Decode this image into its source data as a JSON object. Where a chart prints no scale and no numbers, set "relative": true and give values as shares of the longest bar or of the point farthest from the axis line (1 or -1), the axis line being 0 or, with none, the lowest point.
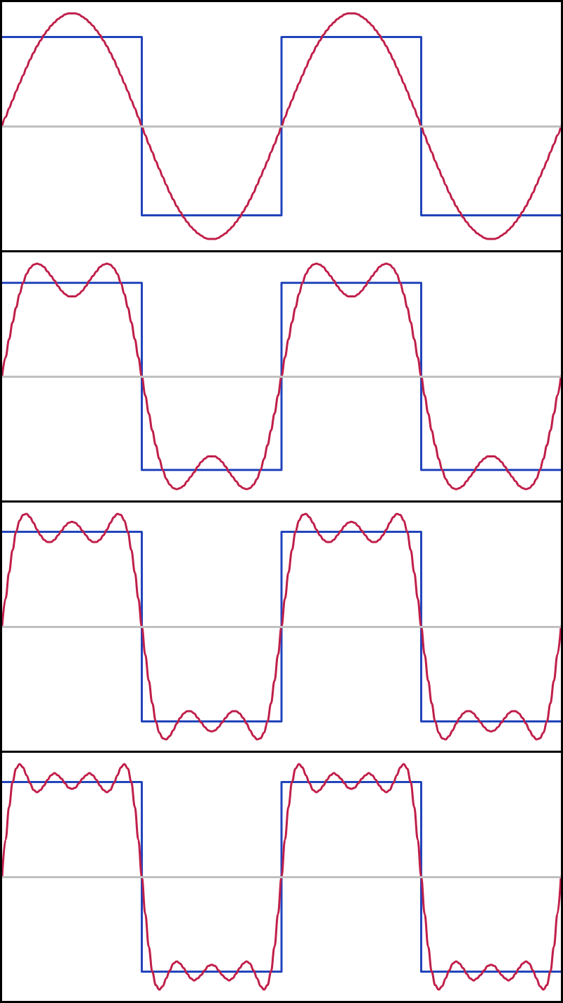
{
  "chart_data": [
    {
      "type": "line",
      "relative": true,
      "marker": "none",
      "tick_labels": false,
      "categories": [
        null,
        null,
        null,
        null,
        null,
        null,
        null,
        null,
        null,
        null,
        null,
        null,
        null,
        null,
        null,
        null,
        null,
        null,
        null,
        null,
        null,
        null,
        null,
        null,
        null,
        null,
        null,
        null,
        null,
        null,
        null,
        null,
        null,
        null,
        null,
        null,
        null,
        null,
        null,
        null,
        null,
        null,
        null,
        null,
        null,
        null,
        null,
        null,
        null,
        null,
        null,
        null,
        null,
        null,
        null,
        null,
        null,
        null,
        null,
        null,
        null,
        null,
        null,
        null,
        null,
        null,
        null,
        null,
        null,
        null,
        null,
        null,
        null,
        null,
        null,
        null,
        null,
        null,
        null,
        null,
        null,
        null,
        null,
        null,
        null,
        null,
        null,
        null,
        null,
        null,
        null,
        null,
        null,
        null,
        null,
        null,
        null,
        null,
        null,
        null,
        null,
        null,
        null,
        null,
        null,
        null,
        null,
        null,
        null,
        null,
        null,
        null,
        null,
        null,
        null,
        null,
        null,
        null,
        null,
        null,
        null,
        null,
        null,
        null,
        null,
        null,
        null,
        null,
        null,
        null,
        null,
        null,
        null,
        null,
        null,
        null,
        null,
        null,
        null,
        null,
        null,
        null,
        null,
        null,
        null,
        null,
        null,
        null,
        null,
        null,
        null,
        null,
        null,
        null,
        null,
        null,
        null,
        null,
        null,
        null,
        null
      ],
      "ref_lines": [
        {
          "axis": "y",
          "value": 0,
          "color": "#c0c0c0"
        }
      ],
      "series": [
        {
          "type": "step",
          "color": "#2244bb",
          "values": [
            0.79,
            0.79,
            0.79,
            0.79,
            0.79,
            0.79,
            0.79,
            0.79,
            0.79,
            0.79,
            0.79,
            0.79,
            0.79,
            0.79,
            0.79,
            0.79,
            0.79,
            0.79,
            0.79,
            0.79,
            0.79,
            0.79,
            0.79,
            0.79,
            0.79,
            0.79,
            0.79,
            0.79,
            0.79,
            0.79,
            0.79,
            0.79,
            0.79,
            0.79,
            0.79,
            0.79,
            0.79,
            0.79,
            0.79,
            0.79,
            -0.79,
            -0.79,
            -0.79,
            -0.79,
            -0.79,
            -0.79,
            -0.79,
            -0.79,
            -0.79,
            -0.79,
            -0.79,
            -0.79,
            -0.79,
            -0.79,
            -0.79,
            -0.79,
            -0.79,
            -0.79,
            -0.79,
            -0.79,
            -0.79,
            -0.79,
            -0.79,
            -0.79,
            -0.79,
            -0.79,
            -0.79,
            -0.79,
            -0.79,
            -0.79,
            -0.79,
            -0.79,
            -0.79,
            -0.79,
            -0.79,
            -0.79,
            -0.79,
            -0.79,
            -0.79,
            -0.79,
            0.79,
            0.79,
            0.79,
            0.79,
            0.79,
            0.79,
            0.79,
            0.79,
            0.79,
            0.79,
            0.79,
            0.79,
            0.79,
            0.79,
            0.79,
            0.79,
            0.79,
            0.79,
            0.79,
            0.79,
            0.79,
            0.79,
            0.79,
            0.79,
            0.79,
            0.79,
            0.79,
            0.79,
            0.79,
            0.79,
            0.79,
            0.79,
            0.79,
            0.79,
            0.79,
            0.79,
            0.79,
            0.79,
            0.79,
            0.79,
            -0.79,
            -0.79,
            -0.79,
            -0.79,
            -0.79,
            -0.79,
            -0.79,
            -0.79,
            -0.79,
            -0.79,
            -0.79,
            -0.79,
            -0.79,
            -0.79,
            -0.79,
            -0.79,
            -0.79,
            -0.79,
            -0.79,
            -0.79,
            -0.79,
            -0.79,
            -0.79,
            -0.79,
            -0.79,
            -0.79,
            -0.79,
            -0.79,
            -0.79,
            -0.79,
            -0.79,
            -0.79,
            -0.79,
            -0.79,
            -0.79,
            -0.79,
            -0.79,
            -0.79,
            -0.79,
            -0.79,
            -0.79
          ]
        },
        {
          "color": "#c01f4a",
          "values": [
            0,
            0.08,
            0.16,
            0.23,
            0.31,
            0.38,
            0.45,
            0.52,
            0.59,
            0.65,
            0.71,
            0.76,
            0.81,
            0.85,
            0.89,
            0.92,
            0.95,
            0.97,
            0.99,
            1,
            1,
            1,
            0.99,
            0.97,
            0.95,
            0.92,
            0.89,
            0.85,
            0.81,
            0.76,
            0.71,
            0.65,
            0.59,
            0.52,
            0.45,
            0.38,
            0.31,
            0.23,
            0.16,
            0.08,
            0,
            -0.08,
            -0.16,
            -0.23,
            -0.31,
            -0.38,
            -0.45,
            -0.52,
            -0.59,
            -0.65,
            -0.71,
            -0.76,
            -0.81,
            -0.85,
            -0.89,
            -0.92,
            -0.95,
            -0.97,
            -0.99,
            -1,
            -1,
            -1,
            -0.99,
            -0.97,
            -0.95,
            -0.92,
            -0.89,
            -0.85,
            -0.81,
            -0.76,
            -0.71,
            -0.65,
            -0.59,
            -0.52,
            -0.45,
            -0.38,
            -0.31,
            -0.23,
            -0.16,
            -0.08,
            0,
            0.08,
            0.16,
            0.23,
            0.31,
            0.38,
            0.45,
            0.52,
            0.59,
            0.65,
            0.71,
            0.76,
            0.81,
            0.85,
            0.89,
            0.92,
            0.95,
            0.97,
            0.99,
            1,
            1,
            1,
            0.99,
            0.97,
            0.95,
            0.92,
            0.89,
            0.85,
            0.81,
            0.76,
            0.71,
            0.65,
            0.59,
            0.52,
            0.45,
            0.38,
            0.31,
            0.23,
            0.16,
            0.08,
            0,
            -0.08,
            -0.16,
            -0.23,
            -0.31,
            -0.38,
            -0.45,
            -0.52,
            -0.59,
            -0.65,
            -0.71,
            -0.76,
            -0.81,
            -0.85,
            -0.89,
            -0.92,
            -0.95,
            -0.97,
            -0.99,
            -1,
            -1,
            -1,
            -0.99,
            -0.97,
            -0.95,
            -0.92,
            -0.89,
            -0.85,
            -0.81,
            -0.76,
            -0.71,
            -0.65,
            -0.59,
            -0.52,
            -0.45,
            -0.38,
            -0.31,
            -0.23,
            -0.16,
            -0.08,
            0
          ]
        }
      ]
    },
    {
      "type": "line",
      "relative": true,
      "marker": "none",
      "tick_labels": false,
      "categories": [
        null,
        null,
        null,
        null,
        null,
        null,
        null,
        null,
        null,
        null,
        null,
        null,
        null,
        null,
        null,
        null,
        null,
        null,
        null,
        null,
        null,
        null,
        null,
        null,
        null,
        null,
        null,
        null,
        null,
        null,
        null,
        null,
        null,
        null,
        null,
        null,
        null,
        null,
        null,
        null,
        null,
        null,
        null,
        null,
        null,
        null,
        null,
        null,
        null,
        null,
        null,
        null,
        null,
        null,
        null,
        null,
        null,
        null,
        null,
        null,
        null,
        null,
        null,
        null,
        null,
        null,
        null,
        null,
        null,
        null,
        null,
        null,
        null,
        null,
        null,
        null,
        null,
        null,
        null,
        null,
        null,
        null,
        null,
        null,
        null,
        null,
        null,
        null,
        null,
        null,
        null,
        null,
        null,
        null,
        null,
        null,
        null,
        null,
        null,
        null,
        null,
        null,
        null,
        null,
        null,
        null,
        null,
        null,
        null,
        null,
        null,
        null,
        null,
        null,
        null,
        null,
        null,
        null,
        null,
        null,
        null,
        null,
        null,
        null,
        null,
        null,
        null,
        null,
        null,
        null,
        null,
        null,
        null,
        null,
        null,
        null,
        null,
        null,
        null,
        null,
        null,
        null,
        null,
        null,
        null,
        null,
        null,
        null,
        null,
        null,
        null,
        null,
        null,
        null,
        null,
        null,
        null,
        null,
        null,
        null,
        null
      ],
      "ref_lines": [
        {
          "axis": "y",
          "value": 0,
          "color": "#c0c0c0"
        }
      ],
      "series": [
        {
          "type": "step",
          "color": "#2244bb",
          "values": [
            0.83,
            0.83,
            0.83,
            0.83,
            0.83,
            0.83,
            0.83,
            0.83,
            0.83,
            0.83,
            0.83,
            0.83,
            0.83,
            0.83,
            0.83,
            0.83,
            0.83,
            0.83,
            0.83,
            0.83,
            0.83,
            0.83,
            0.83,
            0.83,
            0.83,
            0.83,
            0.83,
            0.83,
            0.83,
            0.83,
            0.83,
            0.83,
            0.83,
            0.83,
            0.83,
            0.83,
            0.83,
            0.83,
            0.83,
            0.83,
            -0.83,
            -0.83,
            -0.83,
            -0.83,
            -0.83,
            -0.83,
            -0.83,
            -0.83,
            -0.83,
            -0.83,
            -0.83,
            -0.83,
            -0.83,
            -0.83,
            -0.83,
            -0.83,
            -0.83,
            -0.83,
            -0.83,
            -0.83,
            -0.83,
            -0.83,
            -0.83,
            -0.83,
            -0.83,
            -0.83,
            -0.83,
            -0.83,
            -0.83,
            -0.83,
            -0.83,
            -0.83,
            -0.83,
            -0.83,
            -0.83,
            -0.83,
            -0.83,
            -0.83,
            -0.83,
            -0.83,
            0.83,
            0.83,
            0.83,
            0.83,
            0.83,
            0.83,
            0.83,
            0.83,
            0.83,
            0.83,
            0.83,
            0.83,
            0.83,
            0.83,
            0.83,
            0.83,
            0.83,
            0.83,
            0.83,
            0.83,
            0.83,
            0.83,
            0.83,
            0.83,
            0.83,
            0.83,
            0.83,
            0.83,
            0.83,
            0.83,
            0.83,
            0.83,
            0.83,
            0.83,
            0.83,
            0.83,
            0.83,
            0.83,
            0.83,
            0.83,
            -0.83,
            -0.83,
            -0.83,
            -0.83,
            -0.83,
            -0.83,
            -0.83,
            -0.83,
            -0.83,
            -0.83,
            -0.83,
            -0.83,
            -0.83,
            -0.83,
            -0.83,
            -0.83,
            -0.83,
            -0.83,
            -0.83,
            -0.83,
            -0.83,
            -0.83,
            -0.83,
            -0.83,
            -0.83,
            -0.83,
            -0.83,
            -0.83,
            -0.83,
            -0.83,
            -0.83,
            -0.83,
            -0.83,
            -0.83,
            -0.83,
            -0.83,
            -0.83,
            -0.83,
            -0.83,
            -0.83,
            -0.83
          ]
        },
        {
          "color": "#c01f4a",
          "values": [
            0,
            0.17,
            0.33,
            0.48,
            0.61,
            0.73,
            0.83,
            0.91,
            0.96,
            0.99,
            1,
            0.99,
            0.97,
            0.93,
            0.89,
            0.85,
            0.8,
            0.76,
            0.73,
            0.71,
            0.71,
            0.71,
            0.73,
            0.76,
            0.8,
            0.85,
            0.89,
            0.93,
            0.97,
            0.99,
            1,
            0.99,
            0.96,
            0.91,
            0.83,
            0.73,
            0.61,
            0.48,
            0.33,
            0.17,
            0,
            -0.17,
            -0.33,
            -0.48,
            -0.61,
            -0.73,
            -0.83,
            -0.91,
            -0.96,
            -0.99,
            -1,
            -0.99,
            -0.97,
            -0.93,
            -0.89,
            -0.85,
            -0.8,
            -0.76,
            -0.73,
            -0.71,
            -0.71,
            -0.71,
            -0.73,
            -0.76,
            -0.8,
            -0.85,
            -0.89,
            -0.93,
            -0.97,
            -0.99,
            -1,
            -0.99,
            -0.96,
            -0.91,
            -0.83,
            -0.73,
            -0.61,
            -0.48,
            -0.33,
            -0.17,
            0,
            0.17,
            0.33,
            0.48,
            0.61,
            0.73,
            0.83,
            0.91,
            0.96,
            0.99,
            1,
            0.99,
            0.97,
            0.93,
            0.89,
            0.85,
            0.8,
            0.76,
            0.73,
            0.71,
            0.71,
            0.71,
            0.73,
            0.76,
            0.8,
            0.85,
            0.89,
            0.93,
            0.97,
            0.99,
            1,
            0.99,
            0.96,
            0.91,
            0.83,
            0.73,
            0.61,
            0.48,
            0.33,
            0.17,
            0,
            -0.17,
            -0.33,
            -0.48,
            -0.61,
            -0.73,
            -0.83,
            -0.91,
            -0.96,
            -0.99,
            -1,
            -0.99,
            -0.97,
            -0.93,
            -0.89,
            -0.85,
            -0.8,
            -0.76,
            -0.73,
            -0.71,
            -0.71,
            -0.71,
            -0.73,
            -0.76,
            -0.8,
            -0.85,
            -0.89,
            -0.93,
            -0.97,
            -0.99,
            -1,
            -0.99,
            -0.96,
            -0.91,
            -0.83,
            -0.73,
            -0.61,
            -0.48,
            -0.33,
            -0.17,
            0
          ]
        }
      ]
    },
    {
      "type": "line",
      "relative": true,
      "marker": "none",
      "tick_labels": false,
      "categories": [
        null,
        null,
        null,
        null,
        null,
        null,
        null,
        null,
        null,
        null,
        null,
        null,
        null,
        null,
        null,
        null,
        null,
        null,
        null,
        null,
        null,
        null,
        null,
        null,
        null,
        null,
        null,
        null,
        null,
        null,
        null,
        null,
        null,
        null,
        null,
        null,
        null,
        null,
        null,
        null,
        null,
        null,
        null,
        null,
        null,
        null,
        null,
        null,
        null,
        null,
        null,
        null,
        null,
        null,
        null,
        null,
        null,
        null,
        null,
        null,
        null,
        null,
        null,
        null,
        null,
        null,
        null,
        null,
        null,
        null,
        null,
        null,
        null,
        null,
        null,
        null,
        null,
        null,
        null,
        null,
        null,
        null,
        null,
        null,
        null,
        null,
        null,
        null,
        null,
        null,
        null,
        null,
        null,
        null,
        null,
        null,
        null,
        null,
        null,
        null,
        null,
        null,
        null,
        null,
        null,
        null,
        null,
        null,
        null,
        null,
        null,
        null,
        null,
        null,
        null,
        null,
        null,
        null,
        null,
        null,
        null,
        null,
        null,
        null,
        null,
        null,
        null,
        null,
        null,
        null,
        null,
        null,
        null,
        null,
        null,
        null,
        null,
        null,
        null,
        null,
        null,
        null,
        null,
        null,
        null,
        null,
        null,
        null,
        null,
        null,
        null,
        null,
        null,
        null,
        null,
        null,
        null,
        null,
        null,
        null,
        null
      ],
      "ref_lines": [
        {
          "axis": "y",
          "value": 0,
          "color": "#c0c0c0"
        }
      ],
      "series": [
        {
          "type": "step",
          "color": "#2244bb",
          "values": [
            0.84,
            0.84,
            0.84,
            0.84,
            0.84,
            0.84,
            0.84,
            0.84,
            0.84,
            0.84,
            0.84,
            0.84,
            0.84,
            0.84,
            0.84,
            0.84,
            0.84,
            0.84,
            0.84,
            0.84,
            0.84,
            0.84,
            0.84,
            0.84,
            0.84,
            0.84,
            0.84,
            0.84,
            0.84,
            0.84,
            0.84,
            0.84,
            0.84,
            0.84,
            0.84,
            0.84,
            0.84,
            0.84,
            0.84,
            0.84,
            -0.84,
            -0.84,
            -0.84,
            -0.84,
            -0.84,
            -0.84,
            -0.84,
            -0.84,
            -0.84,
            -0.84,
            -0.84,
            -0.84,
            -0.84,
            -0.84,
            -0.84,
            -0.84,
            -0.84,
            -0.84,
            -0.84,
            -0.84,
            -0.84,
            -0.84,
            -0.84,
            -0.84,
            -0.84,
            -0.84,
            -0.84,
            -0.84,
            -0.84,
            -0.84,
            -0.84,
            -0.84,
            -0.84,
            -0.84,
            -0.84,
            -0.84,
            -0.84,
            -0.84,
            -0.84,
            -0.84,
            0.84,
            0.84,
            0.84,
            0.84,
            0.84,
            0.84,
            0.84,
            0.84,
            0.84,
            0.84,
            0.84,
            0.84,
            0.84,
            0.84,
            0.84,
            0.84,
            0.84,
            0.84,
            0.84,
            0.84,
            0.84,
            0.84,
            0.84,
            0.84,
            0.84,
            0.84,
            0.84,
            0.84,
            0.84,
            0.84,
            0.84,
            0.84,
            0.84,
            0.84,
            0.84,
            0.84,
            0.84,
            0.84,
            0.84,
            0.84,
            -0.84,
            -0.84,
            -0.84,
            -0.84,
            -0.84,
            -0.84,
            -0.84,
            -0.84,
            -0.84,
            -0.84,
            -0.84,
            -0.84,
            -0.84,
            -0.84,
            -0.84,
            -0.84,
            -0.84,
            -0.84,
            -0.84,
            -0.84,
            -0.84,
            -0.84,
            -0.84,
            -0.84,
            -0.84,
            -0.84,
            -0.84,
            -0.84,
            -0.84,
            -0.84,
            -0.84,
            -0.84,
            -0.84,
            -0.84,
            -0.84,
            -0.84,
            -0.84,
            -0.84,
            -0.84,
            -0.84,
            -0.84
          ]
        },
        {
          "color": "#c01f4a",
          "values": [
            0,
            0.25,
            0.48,
            0.68,
            0.84,
            0.94,
            0.99,
            1,
            0.97,
            0.92,
            0.86,
            0.81,
            0.77,
            0.75,
            0.75,
            0.77,
            0.81,
            0.85,
            0.89,
            0.92,
            0.93,
            0.92,
            0.89,
            0.85,
            0.81,
            0.77,
            0.75,
            0.75,
            0.77,
            0.81,
            0.86,
            0.92,
            0.97,
            1,
            0.99,
            0.94,
            0.84,
            0.68,
            0.48,
            0.25,
            0,
            -0.25,
            -0.48,
            -0.68,
            -0.84,
            -0.94,
            -0.99,
            -1,
            -0.97,
            -0.92,
            -0.86,
            -0.81,
            -0.77,
            -0.75,
            -0.75,
            -0.77,
            -0.81,
            -0.85,
            -0.89,
            -0.92,
            -0.93,
            -0.92,
            -0.89,
            -0.85,
            -0.81,
            -0.77,
            -0.75,
            -0.75,
            -0.77,
            -0.81,
            -0.86,
            -0.92,
            -0.97,
            -1,
            -0.99,
            -0.94,
            -0.84,
            -0.68,
            -0.48,
            -0.25,
            0,
            0.25,
            0.48,
            0.68,
            0.84,
            0.94,
            0.99,
            1,
            0.97,
            0.92,
            0.86,
            0.81,
            0.77,
            0.75,
            0.75,
            0.77,
            0.81,
            0.85,
            0.89,
            0.92,
            0.93,
            0.92,
            0.89,
            0.85,
            0.81,
            0.77,
            0.75,
            0.75,
            0.77,
            0.81,
            0.86,
            0.92,
            0.97,
            1,
            0.99,
            0.94,
            0.84,
            0.68,
            0.48,
            0.25,
            0,
            -0.25,
            -0.48,
            -0.68,
            -0.84,
            -0.94,
            -0.99,
            -1,
            -0.97,
            -0.92,
            -0.86,
            -0.81,
            -0.77,
            -0.75,
            -0.75,
            -0.77,
            -0.81,
            -0.85,
            -0.89,
            -0.92,
            -0.93,
            -0.92,
            -0.89,
            -0.85,
            -0.81,
            -0.77,
            -0.75,
            -0.75,
            -0.77,
            -0.81,
            -0.86,
            -0.92,
            -0.97,
            -1,
            -0.99,
            -0.94,
            -0.84,
            -0.68,
            -0.48,
            -0.25,
            0
          ]
        }
      ]
    },
    {
      "type": "line",
      "relative": true,
      "marker": "none",
      "tick_labels": false,
      "categories": [
        null,
        null,
        null,
        null,
        null,
        null,
        null,
        null,
        null,
        null,
        null,
        null,
        null,
        null,
        null,
        null,
        null,
        null,
        null,
        null,
        null,
        null,
        null,
        null,
        null,
        null,
        null,
        null,
        null,
        null,
        null,
        null,
        null,
        null,
        null,
        null,
        null,
        null,
        null,
        null,
        null,
        null,
        null,
        null,
        null,
        null,
        null,
        null,
        null,
        null,
        null,
        null,
        null,
        null,
        null,
        null,
        null,
        null,
        null,
        null,
        null,
        null,
        null,
        null,
        null,
        null,
        null,
        null,
        null,
        null,
        null,
        null,
        null,
        null,
        null,
        null,
        null,
        null,
        null,
        null,
        null,
        null,
        null,
        null,
        null,
        null,
        null,
        null,
        null,
        null,
        null,
        null,
        null,
        null,
        null,
        null,
        null,
        null,
        null,
        null,
        null,
        null,
        null,
        null,
        null,
        null,
        null,
        null,
        null,
        null,
        null,
        null,
        null,
        null,
        null,
        null,
        null,
        null,
        null,
        null,
        null,
        null,
        null,
        null,
        null,
        null,
        null,
        null,
        null,
        null,
        null,
        null,
        null,
        null,
        null,
        null,
        null,
        null,
        null,
        null,
        null,
        null,
        null,
        null,
        null,
        null,
        null,
        null,
        null,
        null,
        null,
        null,
        null,
        null,
        null,
        null,
        null,
        null,
        null,
        null,
        null
      ],
      "ref_lines": [
        {
          "axis": "y",
          "value": 0,
          "color": "#c0c0c0"
        }
      ],
      "series": [
        {
          "type": "step",
          "color": "#2244bb",
          "values": [
            0.84,
            0.84,
            0.84,
            0.84,
            0.84,
            0.84,
            0.84,
            0.84,
            0.84,
            0.84,
            0.84,
            0.84,
            0.84,
            0.84,
            0.84,
            0.84,
            0.84,
            0.84,
            0.84,
            0.84,
            0.84,
            0.84,
            0.84,
            0.84,
            0.84,
            0.84,
            0.84,
            0.84,
            0.84,
            0.84,
            0.84,
            0.84,
            0.84,
            0.84,
            0.84,
            0.84,
            0.84,
            0.84,
            0.84,
            0.84,
            -0.84,
            -0.84,
            -0.84,
            -0.84,
            -0.84,
            -0.84,
            -0.84,
            -0.84,
            -0.84,
            -0.84,
            -0.84,
            -0.84,
            -0.84,
            -0.84,
            -0.84,
            -0.84,
            -0.84,
            -0.84,
            -0.84,
            -0.84,
            -0.84,
            -0.84,
            -0.84,
            -0.84,
            -0.84,
            -0.84,
            -0.84,
            -0.84,
            -0.84,
            -0.84,
            -0.84,
            -0.84,
            -0.84,
            -0.84,
            -0.84,
            -0.84,
            -0.84,
            -0.84,
            -0.84,
            -0.84,
            0.84,
            0.84,
            0.84,
            0.84,
            0.84,
            0.84,
            0.84,
            0.84,
            0.84,
            0.84,
            0.84,
            0.84,
            0.84,
            0.84,
            0.84,
            0.84,
            0.84,
            0.84,
            0.84,
            0.84,
            0.84,
            0.84,
            0.84,
            0.84,
            0.84,
            0.84,
            0.84,
            0.84,
            0.84,
            0.84,
            0.84,
            0.84,
            0.84,
            0.84,
            0.84,
            0.84,
            0.84,
            0.84,
            0.84,
            0.84,
            -0.84,
            -0.84,
            -0.84,
            -0.84,
            -0.84,
            -0.84,
            -0.84,
            -0.84,
            -0.84,
            -0.84,
            -0.84,
            -0.84,
            -0.84,
            -0.84,
            -0.84,
            -0.84,
            -0.84,
            -0.84,
            -0.84,
            -0.84,
            -0.84,
            -0.84,
            -0.84,
            -0.84,
            -0.84,
            -0.84,
            -0.84,
            -0.84,
            -0.84,
            -0.84,
            -0.84,
            -0.84,
            -0.84,
            -0.84,
            -0.84,
            -0.84,
            -0.84,
            -0.84,
            -0.84,
            -0.84,
            -0.84
          ]
        },
        {
          "color": "#c01f4a",
          "values": [
            0,
            0.33,
            0.62,
            0.84,
            0.96,
            1,
            0.97,
            0.9,
            0.83,
            0.77,
            0.75,
            0.77,
            0.81,
            0.86,
            0.9,
            0.92,
            0.9,
            0.87,
            0.83,
            0.79,
            0.78,
            0.79,
            0.83,
            0.87,
            0.9,
            0.92,
            0.9,
            0.86,
            0.81,
            0.77,
            0.75,
            0.77,
            0.83,
            0.9,
            0.97,
            1,
            0.96,
            0.84,
            0.62,
            0.33,
            0,
            -0.33,
            -0.62,
            -0.84,
            -0.96,
            -1,
            -0.97,
            -0.9,
            -0.83,
            -0.77,
            -0.75,
            -0.77,
            -0.81,
            -0.86,
            -0.9,
            -0.92,
            -0.9,
            -0.87,
            -0.83,
            -0.79,
            -0.78,
            -0.79,
            -0.83,
            -0.87,
            -0.9,
            -0.92,
            -0.9,
            -0.86,
            -0.81,
            -0.77,
            -0.75,
            -0.77,
            -0.83,
            -0.9,
            -0.97,
            -1,
            -0.96,
            -0.84,
            -0.62,
            -0.33,
            0,
            0.33,
            0.62,
            0.84,
            0.96,
            1,
            0.97,
            0.9,
            0.83,
            0.77,
            0.75,
            0.77,
            0.81,
            0.86,
            0.9,
            0.92,
            0.9,
            0.87,
            0.83,
            0.79,
            0.78,
            0.79,
            0.83,
            0.87,
            0.9,
            0.92,
            0.9,
            0.86,
            0.81,
            0.77,
            0.75,
            0.77,
            0.83,
            0.9,
            0.97,
            1,
            0.96,
            0.84,
            0.62,
            0.33,
            0,
            -0.33,
            -0.62,
            -0.84,
            -0.96,
            -1,
            -0.97,
            -0.9,
            -0.83,
            -0.77,
            -0.75,
            -0.77,
            -0.81,
            -0.86,
            -0.9,
            -0.92,
            -0.9,
            -0.87,
            -0.83,
            -0.79,
            -0.78,
            -0.79,
            -0.83,
            -0.87,
            -0.9,
            -0.92,
            -0.9,
            -0.86,
            -0.81,
            -0.77,
            -0.75,
            -0.77,
            -0.83,
            -0.9,
            -0.97,
            -1,
            -0.96,
            -0.84,
            -0.62,
            -0.33,
            0
          ]
        }
      ]
    }
  ]
}
